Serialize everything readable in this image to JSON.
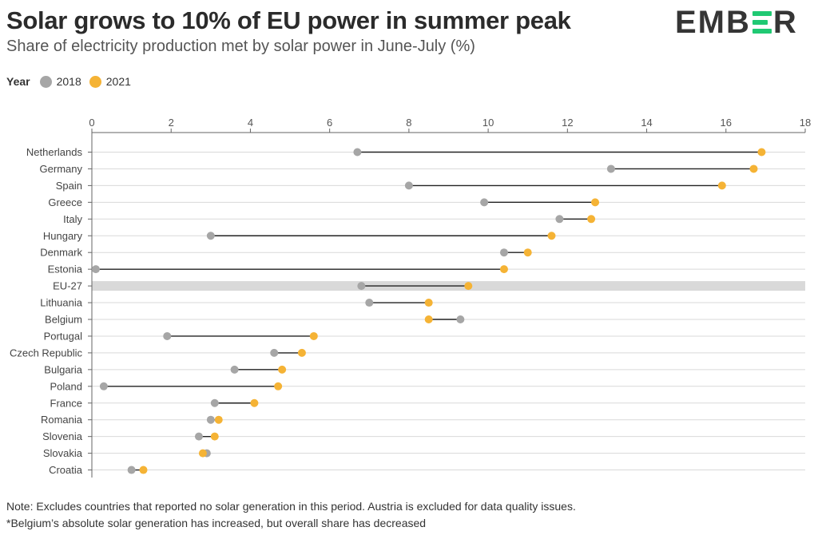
{
  "header": {
    "title": "Solar grows to 10% of EU power in summer peak",
    "subtitle": "Share of electricity production met by solar power in June-July (%)",
    "logo_text": "EMBER"
  },
  "legend": {
    "title": "Year",
    "items": [
      {
        "label": "2018",
        "color": "#a6a6a6"
      },
      {
        "label": "2021",
        "color": "#f5b335"
      }
    ]
  },
  "notes": [
    "Note: Excludes countries that reported no solar generation in this period. Austria is excluded for data quality issues.",
    "*Belgium’s absolute solar generation has increased, but overall share has decreased"
  ],
  "colors": {
    "grid": "#d9d9d9",
    "axis": "#666666",
    "connector": "#222222",
    "highlight": "#d9d9d9",
    "series_2018": "#a6a6a6",
    "series_2021": "#f5b335"
  },
  "chart_data": {
    "type": "dumbbell",
    "title": "Solar grows to 10% of EU power in summer peak",
    "xlabel": "Share of electricity production met by solar power in June-July (%)",
    "xlim": [
      0,
      18
    ],
    "xticks": [
      0,
      2,
      4,
      6,
      8,
      10,
      12,
      14,
      16,
      18
    ],
    "grid": true,
    "legend_position": "top-left",
    "highlight_category": "EU-27",
    "categories": [
      "Netherlands",
      "Germany",
      "Spain",
      "Greece",
      "Italy",
      "Hungary",
      "Denmark",
      "Estonia",
      "EU-27",
      "Lithuania",
      "Belgium",
      "Portugal",
      "Czech Republic",
      "Bulgaria",
      "Poland",
      "France",
      "Romania",
      "Slovenia",
      "Slovakia",
      "Croatia"
    ],
    "series": [
      {
        "name": "2018",
        "values": [
          6.7,
          13.1,
          8.0,
          9.9,
          11.8,
          3.0,
          10.4,
          0.1,
          6.8,
          7.0,
          9.3,
          1.9,
          4.6,
          3.6,
          0.3,
          3.1,
          3.0,
          2.7,
          2.9,
          1.0
        ]
      },
      {
        "name": "2021",
        "values": [
          16.9,
          16.7,
          15.9,
          12.7,
          12.6,
          11.6,
          11.0,
          10.4,
          9.5,
          8.5,
          8.5,
          5.6,
          5.3,
          4.8,
          4.7,
          4.1,
          3.2,
          3.1,
          2.8,
          1.3
        ]
      }
    ]
  }
}
